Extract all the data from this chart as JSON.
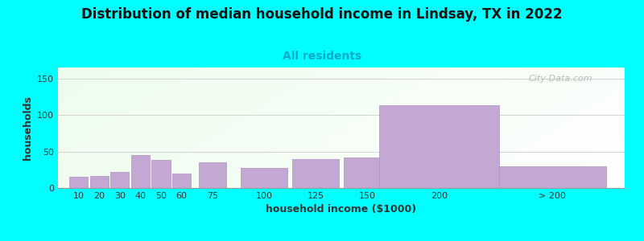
{
  "title": "Distribution of median household income in Lindsay, TX in 2022",
  "subtitle": "All residents",
  "xlabel": "household income ($1000)",
  "ylabel": "households",
  "background_color": "#00FFFF",
  "bar_color": "#c4a8d4",
  "bar_edge_color": "#b090c0",
  "categories": [
    "10",
    "20",
    "30",
    "40",
    "50",
    "60",
    "75",
    "100",
    "125",
    "150",
    "200",
    "> 200"
  ],
  "values": [
    15,
    17,
    22,
    45,
    38,
    20,
    35,
    27,
    40,
    42,
    113,
    30
  ],
  "positions": [
    10,
    20,
    30,
    40,
    50,
    60,
    75,
    100,
    125,
    150,
    185,
    240
  ],
  "widths": [
    9,
    9,
    9,
    9,
    9,
    9,
    13,
    23,
    23,
    23,
    58,
    52
  ],
  "ylim": [
    0,
    165
  ],
  "yticks": [
    0,
    50,
    100,
    150
  ],
  "title_fontsize": 12,
  "subtitle_fontsize": 10,
  "label_fontsize": 9,
  "tick_fontsize": 8,
  "watermark": "City-Data.com"
}
